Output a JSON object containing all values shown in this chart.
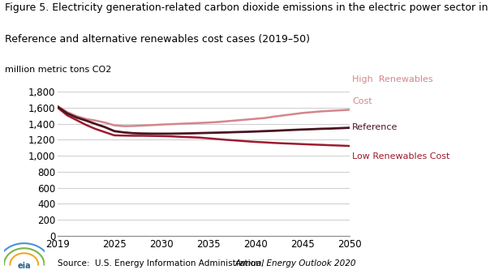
{
  "title_line1": "Figure 5. Electricity generation-related carbon dioxide emissions in the electric power sector in",
  "title_line2": "Reference and alternative renewables cost cases (2019–50)",
  "ylabel": "million metric tons CO2",
  "xlim": [
    2019,
    2050
  ],
  "ylim": [
    0,
    1800
  ],
  "yticks": [
    0,
    200,
    400,
    600,
    800,
    1000,
    1200,
    1400,
    1600,
    1800
  ],
  "xticks": [
    2019,
    2025,
    2030,
    2035,
    2040,
    2045,
    2050
  ],
  "years": [
    2019,
    2020,
    2021,
    2022,
    2023,
    2024,
    2025,
    2026,
    2027,
    2028,
    2029,
    2030,
    2031,
    2032,
    2033,
    2034,
    2035,
    2036,
    2037,
    2038,
    2039,
    2040,
    2041,
    2042,
    2043,
    2044,
    2045,
    2046,
    2047,
    2048,
    2049,
    2050
  ],
  "high_renewables": [
    1620,
    1545,
    1495,
    1460,
    1440,
    1415,
    1380,
    1370,
    1372,
    1378,
    1383,
    1390,
    1395,
    1400,
    1405,
    1410,
    1415,
    1422,
    1432,
    1442,
    1452,
    1462,
    1472,
    1490,
    1505,
    1520,
    1535,
    1545,
    1555,
    1562,
    1568,
    1575
  ],
  "reference": [
    1610,
    1530,
    1478,
    1440,
    1398,
    1358,
    1308,
    1292,
    1282,
    1278,
    1276,
    1276,
    1276,
    1278,
    1280,
    1283,
    1286,
    1289,
    1292,
    1296,
    1299,
    1303,
    1308,
    1312,
    1318,
    1323,
    1328,
    1332,
    1337,
    1340,
    1345,
    1350
  ],
  "low_renewables": [
    1600,
    1505,
    1445,
    1385,
    1335,
    1295,
    1255,
    1252,
    1250,
    1250,
    1248,
    1246,
    1243,
    1237,
    1232,
    1227,
    1218,
    1208,
    1198,
    1190,
    1181,
    1173,
    1167,
    1160,
    1155,
    1150,
    1145,
    1140,
    1136,
    1131,
    1127,
    1122
  ],
  "color_high": "#d4868c",
  "color_reference": "#4a1520",
  "color_low": "#9b1c2e",
  "lw_high": 1.8,
  "lw_reference": 2.0,
  "lw_low": 1.8,
  "grid_color": "#d0d0d0",
  "bg_color": "#ffffff",
  "title_fontsize": 9.0,
  "ylabel_fontsize": 8.0,
  "tick_fontsize": 8.5,
  "legend_fontsize": 8.0,
  "source_fontsize": 7.5
}
